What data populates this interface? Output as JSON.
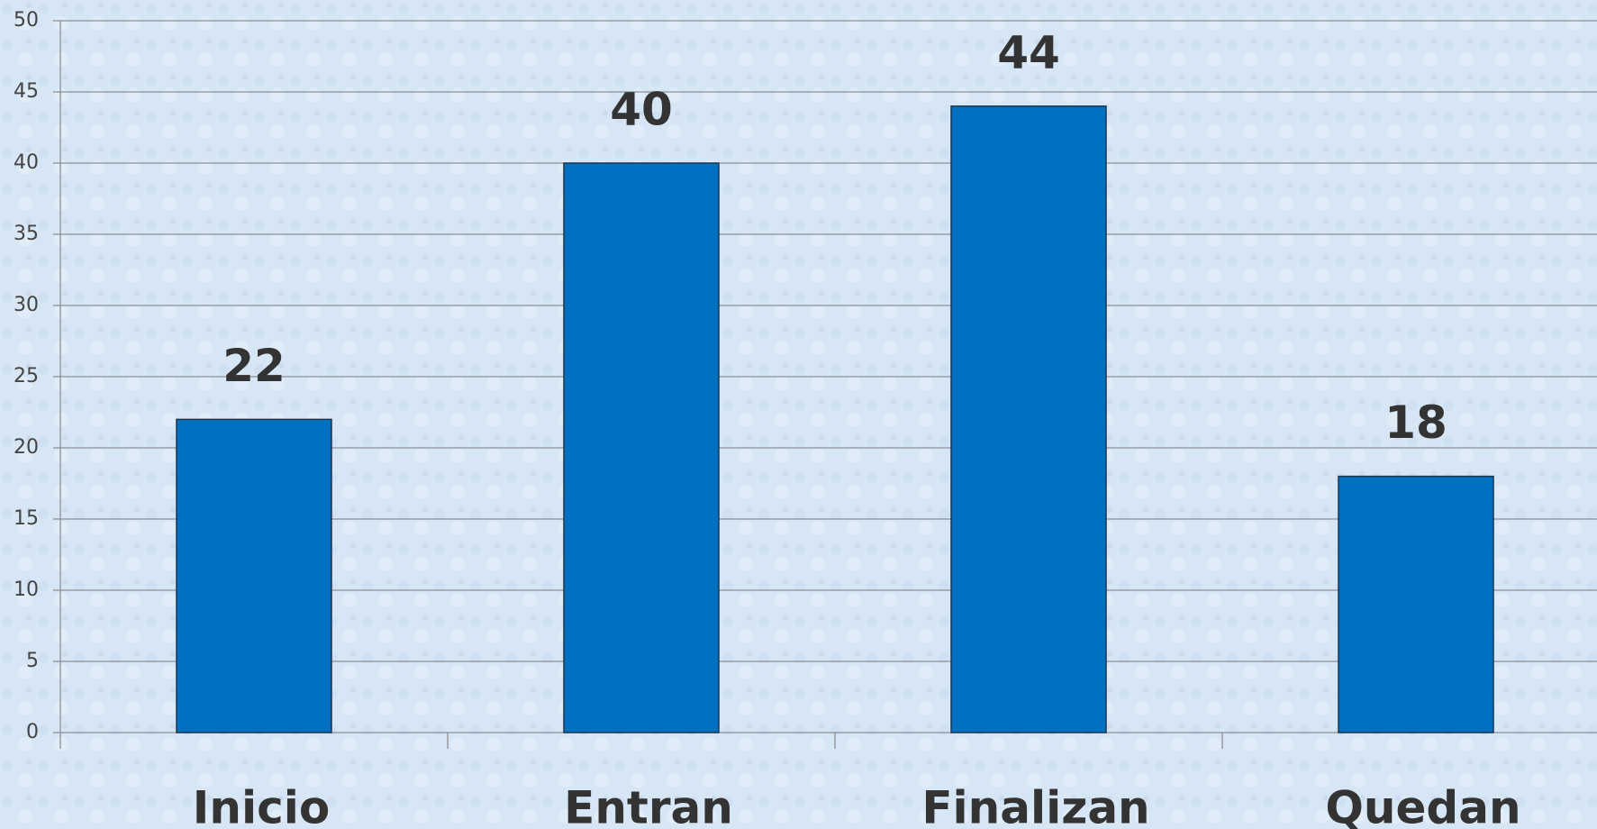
{
  "chart_data": {
    "type": "bar",
    "categories": [
      "Inicio",
      "Entran",
      "Finalizan",
      "Quedan"
    ],
    "values": [
      22,
      40,
      44,
      18
    ],
    "color": "#0070c0",
    "ylim": [
      0,
      50
    ],
    "yticks": [
      0,
      5,
      10,
      15,
      20,
      25,
      30,
      35,
      40,
      45,
      50
    ],
    "grid": true,
    "data_labels": true
  }
}
